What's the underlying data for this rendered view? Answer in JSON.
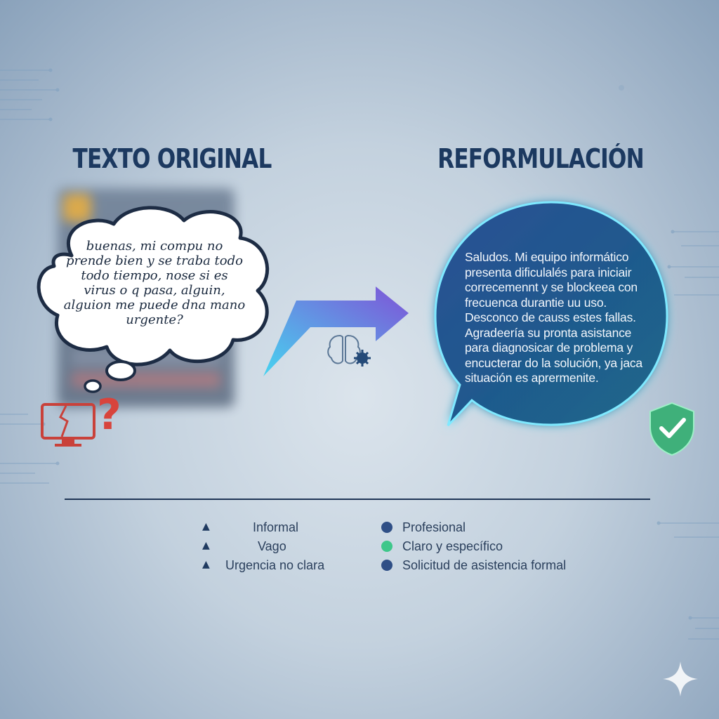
{
  "headings": {
    "original": "TEXTO ORIGINAL",
    "reformulated": "REFORMULACIÓN"
  },
  "original_text": {
    "lines": [
      "buenas, mi compu no",
      "prende bien y se traba todo",
      "todo tiempo, nose si es",
      "virus o q pasa, alguin,",
      "alguion me puede dna mano",
      "urgente?"
    ]
  },
  "reformulated_text": {
    "lines": [
      "Saludos. Mi equipo informático",
      "presenta dificulalés para iniciair",
      "correcemennt y se blockeea con",
      "frecuenca durantie uu uso.",
      "Desconco de causs estes fallas.",
      "Agradeería su pronta asistance",
      "para diagnosicar de problema y",
      "encucterar do la solución, ya jaca",
      "situación es aprermenite."
    ]
  },
  "legend": {
    "left": [
      {
        "label": "Informal",
        "icon": "arrow-up-icon"
      },
      {
        "label": "Vago",
        "icon": "arrow-up-icon"
      },
      {
        "label": "Urgencia no clara",
        "icon": "arrow-up-icon"
      }
    ],
    "right": [
      {
        "label": "Profesional",
        "color": "#2f4f86"
      },
      {
        "label": "Claro y específico",
        "color": "#3ec78a"
      },
      {
        "label": "Solicitud de asistencia formal",
        "color": "#2f4f86"
      }
    ]
  },
  "colors": {
    "heading": "#1c3960",
    "bubble_fill_top": "#1f4f8c",
    "bubble_fill_bottom": "#1f5a86",
    "bubble_glow": "#6fe3ff",
    "arrow_start": "#3fd3f0",
    "arrow_end": "#7b4bd6",
    "shield": "#3fb07a",
    "warning_red": "#d8443c"
  }
}
